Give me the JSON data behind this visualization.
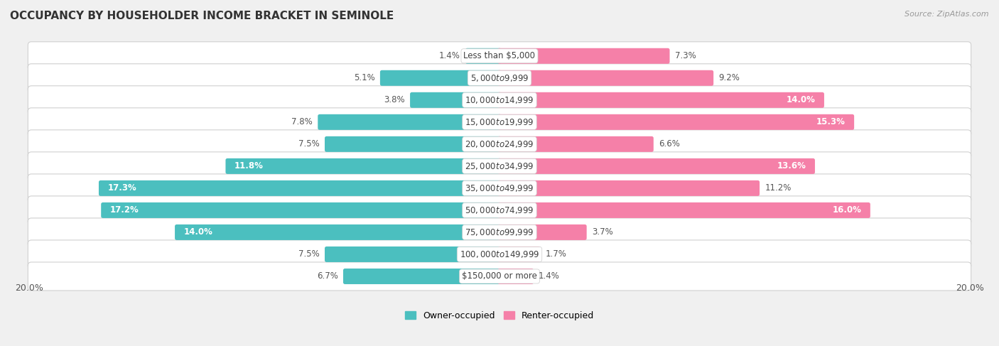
{
  "title": "OCCUPANCY BY HOUSEHOLDER INCOME BRACKET IN SEMINOLE",
  "source": "Source: ZipAtlas.com",
  "categories": [
    "Less than $5,000",
    "$5,000 to $9,999",
    "$10,000 to $14,999",
    "$15,000 to $19,999",
    "$20,000 to $24,999",
    "$25,000 to $34,999",
    "$35,000 to $49,999",
    "$50,000 to $74,999",
    "$75,000 to $99,999",
    "$100,000 to $149,999",
    "$150,000 or more"
  ],
  "owner_values": [
    1.4,
    5.1,
    3.8,
    7.8,
    7.5,
    11.8,
    17.3,
    17.2,
    14.0,
    7.5,
    6.7
  ],
  "renter_values": [
    7.3,
    9.2,
    14.0,
    15.3,
    6.6,
    13.6,
    11.2,
    16.0,
    3.7,
    1.7,
    1.4
  ],
  "owner_color": "#4BBFBF",
  "renter_color": "#F580A8",
  "owner_color_dark": "#3AACAC",
  "renter_color_light": "#F9AECE",
  "background_color": "#f0f0f0",
  "bar_row_color": "#e8e8e8",
  "xlim": 20.0,
  "title_fontsize": 11,
  "label_fontsize": 8.5,
  "cat_fontsize": 8.5,
  "tick_fontsize": 9,
  "legend_fontsize": 9,
  "owner_label_threshold": 11.0,
  "renter_label_threshold": 13.5
}
